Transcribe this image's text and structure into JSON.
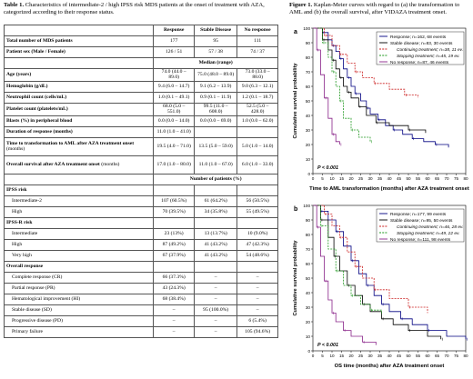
{
  "table_caption": {
    "label": "Table 1.",
    "text": "Characteristics of intermediate-2 / high IPSS risk MDS patients at the onset of treatment with AZA, categorized according to their response status."
  },
  "figure_caption": {
    "label": "Figure 1.",
    "text": "Kaplan-Meier curves with regard to (a) the transformation to AML and (b) the overall survival, after VIDAZA treatment onset."
  },
  "table": {
    "headers": [
      "",
      "Response",
      "Stable Disease",
      "No response"
    ],
    "rows": [
      {
        "label": "Total number of MDS patients",
        "bold": true,
        "v": [
          "177",
          "95",
          "111"
        ]
      },
      {
        "label": "Patient sex (Male / Female)",
        "bold": true,
        "v": [
          "126 / 51",
          "57 / 38",
          "74 / 37"
        ]
      },
      {
        "section": "Median (range)"
      },
      {
        "label": "Age (years)",
        "bold": true,
        "v": [
          "74.0 (44.0 – 89.0)",
          "75.0 (48.0 – 89.0)",
          "73.0 (33.0 – 88.0)"
        ]
      },
      {
        "label": "Hemoglobin (g/dL)",
        "bold": true,
        "v": [
          "9.4 (6.0 – 14.7)",
          "9.1 (6.2 – 13.9)",
          "9.0 (6.3 – 12.1)"
        ]
      },
      {
        "label": "Neutrophil count (cells/mL)",
        "bold": true,
        "v": [
          "1.0 (0.1 – 49.1)",
          "0.9 (0.1 – 11.9)",
          "1.2 (0.1 – 18.7)"
        ]
      },
      {
        "label": "Platelet count (platelets/mL)",
        "bold": true,
        "v": [
          "68.0 (5.0 – 551.0)",
          "99.5 (11.0 – 608.0)",
          "52.5 (5.0 – 428.0)"
        ]
      },
      {
        "label": "Blasts (%) in peripheral blood",
        "bold": true,
        "v": [
          "0.0 (0.0 – 14.0)",
          "0.0 (0.0 – 69.0)",
          "1.0 (0.0 – 62.0)"
        ]
      },
      {
        "label": "Duration of response (months)",
        "bold": true,
        "v": [
          "11.0 (1.0 – 41.0)",
          "",
          ""
        ]
      },
      {
        "label": "Time to transformation to AML after AZA treatment onset",
        "sub": "(months)",
        "tall": true,
        "v": [
          "19.5 (4.0 – 71.0)",
          "13.5 (5.0 – 59.0)",
          "5.0 (1.0 – 14.0)"
        ]
      },
      {
        "label": "Overall survival after AZA treatment onset",
        "sub": "(months)",
        "tall": true,
        "v": [
          "17.0 (1.0 – 80.0)",
          "11.0 (1.0 – 67.0)",
          "6.0 (1.0 – 33.0)"
        ]
      },
      {
        "section": "Number of patients (%)"
      },
      {
        "label": "IPSS risk",
        "bold": true,
        "v": [
          "",
          "",
          ""
        ]
      },
      {
        "label": "Intermediate-2",
        "indent": true,
        "v": [
          "107 (60.5%)",
          "61 (64.2%)",
          "56 (50.5%)"
        ]
      },
      {
        "label": "High",
        "indent": true,
        "v": [
          "70 (39.5%)",
          "34 (35.8%)",
          "55 (49.5%)"
        ]
      },
      {
        "label": "IPSS-R risk",
        "bold": true,
        "v": [
          "",
          "",
          ""
        ]
      },
      {
        "label": "Intermediate",
        "indent": true,
        "v": [
          "23 (13%)",
          "13 (13.7%)",
          "10 (9.0%)"
        ]
      },
      {
        "label": "High",
        "indent": true,
        "v": [
          "87 (49.2%)",
          "41 (43.2%)",
          "47 (42.3%)"
        ]
      },
      {
        "label": "Very high",
        "indent": true,
        "v": [
          "67 (37.9%)",
          "41 (43.2%)",
          "54 (48.6%)"
        ]
      },
      {
        "label": "Overall response",
        "bold": true,
        "v": [
          "",
          "",
          ""
        ]
      },
      {
        "label": "Complete response (CR)",
        "indent": true,
        "v": [
          "66 (37.3%)",
          "–",
          "–"
        ]
      },
      {
        "label": "Partial response (PR)",
        "indent": true,
        "v": [
          "43 (24.3%)",
          "–",
          "–"
        ]
      },
      {
        "label": "Hematological improvement (HI)",
        "indent": true,
        "v": [
          "68 (38.4%)",
          "–",
          "–"
        ]
      },
      {
        "label": "Stable disease (SD)",
        "indent": true,
        "v": [
          "–",
          "95 (100.0%)",
          "–"
        ]
      },
      {
        "label": "Progressive disease (PD)",
        "indent": true,
        "v": [
          "–",
          "–",
          "6 (5.4%)"
        ]
      },
      {
        "label": "Primary failure",
        "indent": true,
        "v": [
          "–",
          "–",
          "105 (94.6%)"
        ]
      }
    ]
  },
  "panels": [
    {
      "letter": "a",
      "ylabel": "Cumulative survival probability",
      "xlabel": "Time to AML transformation (months) after AZA treatment onset",
      "pvalue": "P < 0.001",
      "legend": [
        {
          "text": "Response; n=162, 68 events",
          "color": "#000080",
          "dash": false
        },
        {
          "text": "Stable disease; n=83, 30 events",
          "color": "#000000",
          "dash": false
        },
        {
          "text": "Continuing treatment; n=38, 11 ev.",
          "color": "#cc2222",
          "dash": true,
          "italic": true
        },
        {
          "text": "Stopping treatment; n=45, 19 ev.",
          "color": "#229922",
          "dash": true,
          "italic": true
        },
        {
          "text": "No response; n=87, 46 events",
          "color": "#882288",
          "dash": false
        }
      ]
    },
    {
      "letter": "b",
      "ylabel": "Cumulative survival probability",
      "xlabel": "OS time (months) after AZA treatment onset",
      "pvalue": "P < 0.001",
      "legend": [
        {
          "text": "Response; n=177, 99 events",
          "color": "#000080",
          "dash": false
        },
        {
          "text": "Stable disease; n=95, 50 events",
          "color": "#000000",
          "dash": false
        },
        {
          "text": "Continuing treatment; n=46, 28 ev.",
          "color": "#cc2222",
          "dash": true,
          "italic": true
        },
        {
          "text": "Stopping treatment; n=49, 22 ev.",
          "color": "#229922",
          "dash": true,
          "italic": true
        },
        {
          "text": "No response; n=111, 98 events",
          "color": "#882288",
          "dash": false
        }
      ]
    }
  ],
  "chart_data": [
    {
      "type": "line",
      "title": "",
      "xlabel": "Time to AML transformation (months) after AZA treatment onset",
      "ylabel": "Cumulative survival probability",
      "xlim": [
        0,
        80
      ],
      "ylim": [
        0,
        100
      ],
      "xticks": [
        0,
        5,
        10,
        15,
        20,
        25,
        30,
        35,
        40,
        45,
        50,
        55,
        60,
        65,
        70,
        75,
        80
      ],
      "yticks": [
        0,
        10,
        20,
        30,
        40,
        50,
        60,
        70,
        80,
        90,
        100
      ],
      "series": [
        {
          "name": "Response; n=162, 68 events",
          "color": "#000080",
          "dash": false,
          "x": [
            0,
            5,
            8,
            10,
            12,
            14,
            16,
            18,
            20,
            22,
            25,
            28,
            30,
            34,
            38,
            42,
            47,
            52,
            58,
            64,
            71
          ],
          "y": [
            100,
            97,
            92,
            88,
            84,
            79,
            72,
            66,
            60,
            55,
            50,
            45,
            41,
            37,
            33,
            30,
            27,
            24,
            22,
            20,
            18
          ]
        },
        {
          "name": "Stable disease; n=83, 30 events",
          "color": "#000000",
          "dash": false,
          "x": [
            0,
            5,
            8,
            10,
            12,
            14,
            16,
            18,
            20,
            24,
            28,
            33,
            40,
            50,
            59
          ],
          "y": [
            100,
            92,
            85,
            78,
            72,
            66,
            60,
            56,
            52,
            46,
            40,
            35,
            33,
            30,
            28
          ]
        },
        {
          "name": "Continuing treatment; n=38, 11 ev.",
          "color": "#cc2222",
          "dash": true,
          "x": [
            0,
            6,
            10,
            14,
            18,
            22,
            26,
            32,
            40,
            48,
            55
          ],
          "y": [
            100,
            95,
            88,
            82,
            76,
            70,
            66,
            62,
            58,
            54,
            52
          ]
        },
        {
          "name": "Stopping treatment; n=45, 19 ev.",
          "color": "#229922",
          "dash": true,
          "x": [
            0,
            5,
            8,
            10,
            12,
            14,
            16,
            20,
            24,
            30
          ],
          "y": [
            100,
            90,
            80,
            70,
            60,
            50,
            38,
            30,
            25,
            22
          ]
        },
        {
          "name": "No response; n=87, 46 events",
          "color": "#882288",
          "dash": false,
          "x": [
            0,
            2,
            4,
            6,
            8,
            10,
            12,
            14
          ],
          "y": [
            100,
            85,
            68,
            52,
            38,
            27,
            22,
            20
          ]
        }
      ],
      "annotation": "P < 0.001"
    },
    {
      "type": "line",
      "title": "",
      "xlabel": "OS time (months) after AZA treatment onset",
      "ylabel": "Cumulative survival probability",
      "xlim": [
        0,
        80
      ],
      "ylim": [
        0,
        100
      ],
      "xticks": [
        0,
        5,
        10,
        15,
        20,
        25,
        30,
        35,
        40,
        45,
        50,
        55,
        60,
        65,
        70,
        75,
        80
      ],
      "yticks": [
        0,
        10,
        20,
        30,
        40,
        50,
        60,
        70,
        80,
        90,
        100
      ],
      "series": [
        {
          "name": "Response; n=177, 99 events",
          "color": "#000080",
          "dash": false,
          "x": [
            0,
            4,
            8,
            12,
            16,
            20,
            24,
            28,
            32,
            36,
            40,
            46,
            52,
            60,
            70,
            80
          ],
          "y": [
            100,
            96,
            90,
            82,
            72,
            62,
            53,
            45,
            38,
            32,
            27,
            22,
            18,
            14,
            10,
            8
          ]
        },
        {
          "name": "Stable disease; n=95, 50 events",
          "color": "#000000",
          "dash": false,
          "x": [
            0,
            4,
            8,
            11,
            14,
            18,
            22,
            26,
            30,
            36,
            42,
            50,
            60,
            67
          ],
          "y": [
            100,
            90,
            78,
            65,
            55,
            45,
            38,
            32,
            27,
            22,
            18,
            14,
            10,
            8
          ]
        },
        {
          "name": "Continuing treatment; n=46, 28 ev.",
          "color": "#cc2222",
          "dash": true,
          "x": [
            0,
            6,
            10,
            14,
            18,
            22,
            26,
            32,
            40,
            50,
            60
          ],
          "y": [
            100,
            94,
            86,
            78,
            68,
            58,
            50,
            42,
            36,
            30,
            26
          ]
        },
        {
          "name": "Stopping treatment; n=49, 22 ev.",
          "color": "#229922",
          "dash": true,
          "x": [
            0,
            4,
            8,
            12,
            16,
            20,
            25,
            30,
            36
          ],
          "y": [
            100,
            86,
            70,
            55,
            45,
            38,
            32,
            28,
            25
          ]
        },
        {
          "name": "No response; n=111, 98 events",
          "color": "#882288",
          "dash": false,
          "x": [
            0,
            2,
            4,
            6,
            8,
            10,
            12,
            16,
            20,
            26,
            33
          ],
          "y": [
            100,
            85,
            65,
            48,
            35,
            26,
            20,
            14,
            10,
            6,
            4
          ]
        }
      ],
      "annotation": "P < 0.001"
    }
  ]
}
